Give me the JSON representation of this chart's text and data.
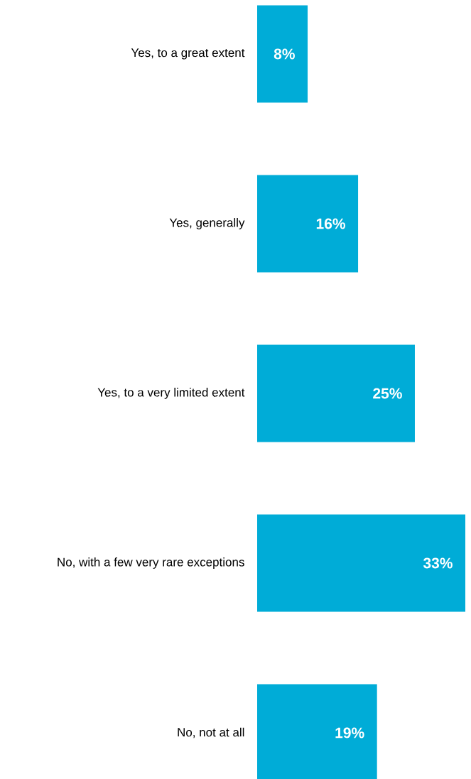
{
  "chart_data": {
    "type": "bar",
    "orientation": "horizontal",
    "categories": [
      "Yes, to a great extent",
      "Yes, generally",
      "Yes, to a very limited extent",
      "No, with a few very rare exceptions",
      "No, not at all"
    ],
    "values": [
      8,
      16,
      25,
      33,
      19
    ],
    "value_labels": [
      "8%",
      "16%",
      "25%",
      "33%",
      "19%"
    ],
    "color": "#00acd7"
  }
}
